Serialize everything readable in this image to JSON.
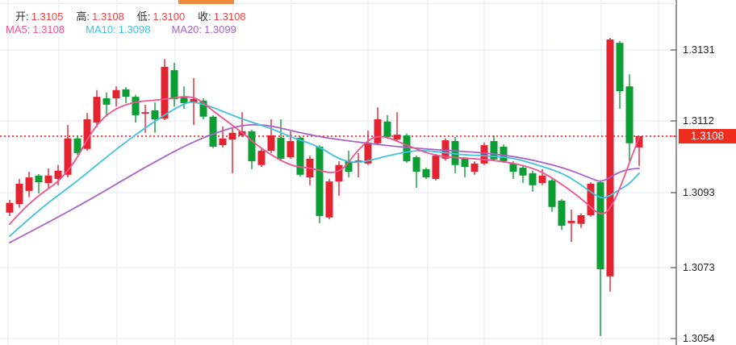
{
  "legend": {
    "open_label": "开:",
    "open_value": "1.3105",
    "high_label": "高:",
    "high_value": "1.3108",
    "low_label": "低:",
    "low_value": "1.3100",
    "close_label": "收:",
    "close_value": "1.3108",
    "ma5_label": "MA5:",
    "ma5_value": "1.3108",
    "ma10_label": "MA10:",
    "ma10_value": "1.3098",
    "ma20_label": "MA20:",
    "ma20_value": "1.3099"
  },
  "price_tag": {
    "label": "1.3108",
    "price": 1.3108
  },
  "reference_line": {
    "price": 1.3108
  },
  "colors": {
    "up": "#e32330",
    "down": "#0a9e34",
    "ma5": "#f0538f",
    "ma10": "#3fc2de",
    "ma20": "#a862c8",
    "grid": "#e2eaf3",
    "axis": "#2f2f2f",
    "dotted_line": "#fb3d3d",
    "tag_bg": "#ef2c1d",
    "tag_text": "#ffffff",
    "legend_value_red": "#f54242",
    "scroll_thumb": "#f08a3e"
  },
  "chart_data": {
    "type": "candlestick",
    "last_bar": {
      "open": 1.3105,
      "high": 1.3108,
      "low": 1.31,
      "close": 1.3108
    },
    "ma_values": {
      "MA5": 1.3108,
      "MA10": 1.3098,
      "MA20": 1.3099
    },
    "y_ticks": [
      "1.3131",
      "1.3112",
      "1.3093",
      "1.3073",
      "1.3054"
    ],
    "last_price": "1.3108",
    "candles": [
      [
        1.30876,
        1.3091,
        1.30867,
        1.30902
      ],
      [
        1.30899,
        1.30966,
        1.30889,
        1.30953
      ],
      [
        1.30934,
        1.30985,
        1.30917,
        1.3097
      ],
      [
        1.30975,
        1.30979,
        1.30927,
        1.30957
      ],
      [
        1.30955,
        1.30994,
        1.30942,
        1.30975
      ],
      [
        1.30966,
        1.31003,
        1.30949,
        1.30988
      ],
      [
        1.30977,
        1.3111,
        1.3097,
        1.31074
      ],
      [
        1.31074,
        1.31082,
        1.3103,
        1.31035
      ],
      [
        1.31046,
        1.31142,
        1.31041,
        1.31125
      ],
      [
        1.31116,
        1.31203,
        1.31104,
        1.31185
      ],
      [
        1.31181,
        1.31196,
        1.31132,
        1.31164
      ],
      [
        1.31181,
        1.31213,
        1.31159,
        1.31203
      ],
      [
        1.31205,
        1.31211,
        1.31168,
        1.31185
      ],
      [
        1.31185,
        1.3119,
        1.31116,
        1.31136
      ],
      [
        1.3114,
        1.31164,
        1.31089,
        1.31144
      ],
      [
        1.31149,
        1.3117,
        1.31089,
        1.31125
      ],
      [
        1.31127,
        1.31286,
        1.31123,
        1.31265
      ],
      [
        1.31256,
        1.31276,
        1.31159,
        1.31179
      ],
      [
        1.31183,
        1.31213,
        1.31153,
        1.31168
      ],
      [
        1.3117,
        1.31235,
        1.3111,
        1.31179
      ],
      [
        1.31175,
        1.31181,
        1.31125,
        1.31132
      ],
      [
        1.31132,
        1.31136,
        1.31048,
        1.31052
      ],
      [
        1.31056,
        1.31106,
        1.3105,
        1.31074
      ],
      [
        1.31071,
        1.311,
        1.30981,
        1.31089
      ],
      [
        1.31082,
        1.31144,
        1.31078,
        1.31093
      ],
      [
        1.31093,
        1.31097,
        1.30992,
        1.31013
      ],
      [
        1.31003,
        1.31046,
        1.30998,
        1.31041
      ],
      [
        1.31041,
        1.31125,
        1.31035,
        1.31082
      ],
      [
        1.31076,
        1.31125,
        1.31013,
        1.3102
      ],
      [
        1.31024,
        1.31093,
        1.3102,
        1.31067
      ],
      [
        1.31076,
        1.3108,
        1.30972,
        1.30977
      ],
      [
        1.3097,
        1.31028,
        1.30949,
        1.3102
      ],
      [
        1.31052,
        1.31056,
        1.30848,
        1.30867
      ],
      [
        1.30863,
        1.30966,
        1.30858,
        1.30959
      ],
      [
        1.30959,
        1.31013,
        1.30921,
        1.31003
      ],
      [
        1.31013,
        1.31041,
        1.3097,
        1.30985
      ],
      [
        1.31011,
        1.31035,
        1.3097,
        1.31015
      ],
      [
        1.31007,
        1.31095,
        1.31003,
        1.31063
      ],
      [
        1.31061,
        1.31157,
        1.31056,
        1.31125
      ],
      [
        1.31119,
        1.31136,
        1.31074,
        1.31078
      ],
      [
        1.31071,
        1.31144,
        1.31067,
        1.31084
      ],
      [
        1.31082,
        1.31087,
        1.31009,
        1.31013
      ],
      [
        1.31024,
        1.31028,
        1.30942,
        1.30985
      ],
      [
        1.30992,
        1.30996,
        1.30966,
        1.3097
      ],
      [
        1.30966,
        1.31032,
        1.30962,
        1.31028
      ],
      [
        1.3102,
        1.31074,
        1.31015,
        1.31069
      ],
      [
        1.31067,
        1.31078,
        1.30981,
        1.31003
      ],
      [
        1.3102,
        1.31024,
        1.3097,
        1.30998
      ],
      [
        1.30985,
        1.31013,
        1.30977,
        1.31007
      ],
      [
        1.31007,
        1.31063,
        1.31003,
        1.31056
      ],
      [
        1.31067,
        1.31082,
        1.31013,
        1.31018
      ],
      [
        1.31052,
        1.31058,
        1.31009,
        1.31013
      ],
      [
        1.31007,
        1.31013,
        1.30966,
        1.30985
      ],
      [
        1.30996,
        1.31003,
        1.30955,
        1.30975
      ],
      [
        1.30981,
        1.30988,
        1.30932,
        1.30949
      ],
      [
        1.30955,
        1.30992,
        1.30949,
        1.30975
      ],
      [
        1.30962,
        1.30966,
        1.30878,
        1.30891
      ],
      [
        1.30908,
        1.30912,
        1.3083,
        1.30841
      ],
      [
        1.30848,
        1.30884,
        1.30798,
        1.30854
      ],
      [
        1.30846,
        1.30874,
        1.30835,
        1.30869
      ],
      [
        1.30869,
        1.30957,
        1.30865,
        1.30953
      ],
      [
        1.30957,
        1.30962,
        1.30547,
        1.30725
      ],
      [
        1.30706,
        1.31342,
        1.30665,
        1.31338
      ],
      [
        1.31329,
        1.31334,
        1.31153,
        1.312
      ],
      [
        1.31213,
        1.31245,
        1.31013,
        1.31061
      ],
      [
        1.3105,
        1.3108,
        1.31,
        1.3108
      ]
    ],
    "ma_lines": [
      {
        "name": "MA20",
        "points": [
          [
            0,
            1.30796
          ],
          [
            4,
            1.3085
          ],
          [
            9,
            1.30921
          ],
          [
            14,
            1.30998
          ],
          [
            19,
            1.31067
          ],
          [
            23,
            1.31104
          ],
          [
            25,
            1.31112
          ],
          [
            27,
            1.31108
          ],
          [
            30,
            1.31089
          ],
          [
            33,
            1.31074
          ],
          [
            37,
            1.31061
          ],
          [
            40,
            1.31052
          ],
          [
            43,
            1.31046
          ],
          [
            47,
            1.31039
          ],
          [
            50,
            1.31033
          ],
          [
            53,
            1.31022
          ],
          [
            57,
            1.30998
          ],
          [
            60,
            1.30968
          ],
          [
            61,
            1.30957
          ],
          [
            62,
            1.3097
          ],
          [
            63,
            1.30985
          ],
          [
            64,
            1.30992
          ],
          [
            65,
            1.30994
          ]
        ]
      },
      {
        "name": "MA10",
        "points": [
          [
            0,
            1.30813
          ],
          [
            3,
            1.30884
          ],
          [
            7,
            1.3096
          ],
          [
            11,
            1.31046
          ],
          [
            15,
            1.31121
          ],
          [
            18,
            1.31168
          ],
          [
            19,
            1.31172
          ],
          [
            21,
            1.31157
          ],
          [
            24,
            1.31125
          ],
          [
            27,
            1.31101
          ],
          [
            29,
            1.31078
          ],
          [
            32,
            1.31052
          ],
          [
            34,
            1.31018
          ],
          [
            36,
            1.31007
          ],
          [
            39,
            1.31028
          ],
          [
            42,
            1.31043
          ],
          [
            44,
            1.31039
          ],
          [
            47,
            1.3103
          ],
          [
            49,
            1.31028
          ],
          [
            52,
            1.31022
          ],
          [
            54,
            1.31007
          ],
          [
            57,
            1.30983
          ],
          [
            59,
            1.30951
          ],
          [
            61,
            1.30912
          ],
          [
            62,
            1.30921
          ],
          [
            63,
            1.30938
          ],
          [
            64,
            1.30953
          ],
          [
            65,
            1.30981
          ]
        ]
      },
      {
        "name": "MA5",
        "points": [
          [
            0,
            1.30845
          ],
          [
            2,
            1.30905
          ],
          [
            6,
            1.30975
          ],
          [
            9,
            1.3112
          ],
          [
            12,
            1.3117
          ],
          [
            16,
            1.31178
          ],
          [
            19,
            1.3119
          ],
          [
            21,
            1.31147
          ],
          [
            24,
            1.3109
          ],
          [
            26,
            1.31046
          ],
          [
            29,
            1.31
          ],
          [
            31,
            1.30996
          ],
          [
            34,
            1.30975
          ],
          [
            36,
            1.31046
          ],
          [
            38,
            1.31088
          ],
          [
            41,
            1.31056
          ],
          [
            44,
            1.31026
          ],
          [
            48,
            1.3102
          ],
          [
            51,
            1.31013
          ],
          [
            54,
            1.30996
          ],
          [
            56,
            1.3097
          ],
          [
            59,
            1.30915
          ],
          [
            61,
            1.30866
          ],
          [
            62,
            1.30885
          ],
          [
            63,
            1.3094
          ],
          [
            64,
            1.3101
          ],
          [
            65,
            1.31077
          ]
        ]
      }
    ]
  }
}
